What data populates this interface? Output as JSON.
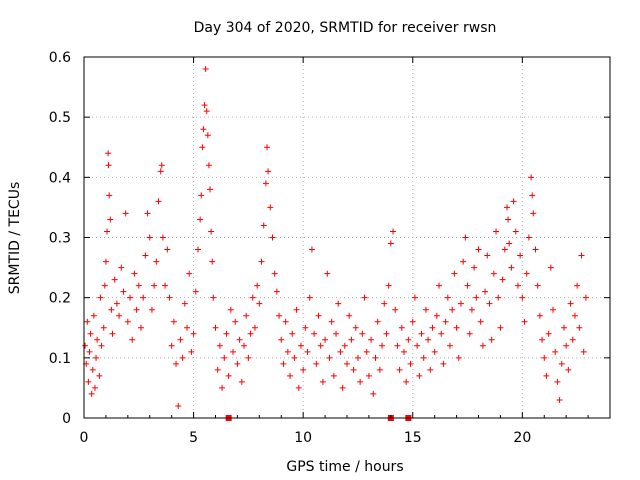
{
  "chart_data": {
    "type": "scatter",
    "title": "Day 304 of 2020, SRMTID for receiver rwsn",
    "xlabel": "GPS time / hours",
    "ylabel": "SRMTID / TECUs",
    "xlim": [
      0,
      24
    ],
    "ylim": [
      0,
      0.6
    ],
    "xticks": [
      0,
      5,
      10,
      15,
      20
    ],
    "xtick_labels": [
      "0",
      "5",
      "10",
      "15",
      "20"
    ],
    "yticks": [
      0,
      0.1,
      0.2,
      0.3,
      0.4,
      0.5,
      0.6
    ],
    "ytick_labels": [
      "0",
      "0.1",
      "0.2",
      "0.3",
      "0.4",
      "0.5",
      "0.6"
    ],
    "grid": true,
    "marker": "plus",
    "series_color": "#ff0000",
    "series": [
      {
        "name": "SRMTID",
        "points": [
          [
            0.05,
            0.12
          ],
          [
            0.1,
            0.09
          ],
          [
            0.15,
            0.16
          ],
          [
            0.2,
            0.06
          ],
          [
            0.25,
            0.11
          ],
          [
            0.3,
            0.14
          ],
          [
            0.35,
            0.04
          ],
          [
            0.4,
            0.08
          ],
          [
            0.45,
            0.17
          ],
          [
            0.5,
            0.05
          ],
          [
            0.55,
            0.1
          ],
          [
            0.6,
            0.13
          ],
          [
            0.7,
            0.07
          ],
          [
            0.75,
            0.2
          ],
          [
            0.8,
            0.12
          ],
          [
            0.9,
            0.15
          ],
          [
            0.95,
            0.22
          ],
          [
            1.0,
            0.26
          ],
          [
            1.05,
            0.31
          ],
          [
            1.1,
            0.44
          ],
          [
            1.12,
            0.42
          ],
          [
            1.15,
            0.37
          ],
          [
            1.2,
            0.33
          ],
          [
            1.25,
            0.18
          ],
          [
            1.3,
            0.14
          ],
          [
            1.4,
            0.23
          ],
          [
            1.5,
            0.19
          ],
          [
            1.6,
            0.17
          ],
          [
            1.7,
            0.25
          ],
          [
            1.8,
            0.21
          ],
          [
            1.9,
            0.34
          ],
          [
            2.0,
            0.16
          ],
          [
            2.1,
            0.2
          ],
          [
            2.2,
            0.13
          ],
          [
            2.3,
            0.24
          ],
          [
            2.4,
            0.18
          ],
          [
            2.5,
            0.22
          ],
          [
            2.6,
            0.15
          ],
          [
            2.7,
            0.2
          ],
          [
            2.8,
            0.27
          ],
          [
            2.9,
            0.34
          ],
          [
            3.0,
            0.3
          ],
          [
            3.1,
            0.18
          ],
          [
            3.2,
            0.22
          ],
          [
            3.3,
            0.26
          ],
          [
            3.4,
            0.36
          ],
          [
            3.5,
            0.41
          ],
          [
            3.55,
            0.42
          ],
          [
            3.6,
            0.3
          ],
          [
            3.7,
            0.22
          ],
          [
            3.8,
            0.28
          ],
          [
            3.9,
            0.2
          ],
          [
            4.0,
            0.12
          ],
          [
            4.1,
            0.16
          ],
          [
            4.2,
            0.09
          ],
          [
            4.3,
            0.02
          ],
          [
            4.4,
            0.13
          ],
          [
            4.5,
            0.1
          ],
          [
            4.6,
            0.19
          ],
          [
            4.7,
            0.15
          ],
          [
            4.8,
            0.24
          ],
          [
            4.9,
            0.11
          ],
          [
            5.0,
            0.14
          ],
          [
            5.1,
            0.21
          ],
          [
            5.2,
            0.28
          ],
          [
            5.3,
            0.33
          ],
          [
            5.35,
            0.37
          ],
          [
            5.4,
            0.45
          ],
          [
            5.45,
            0.48
          ],
          [
            5.5,
            0.52
          ],
          [
            5.55,
            0.58
          ],
          [
            5.6,
            0.51
          ],
          [
            5.65,
            0.47
          ],
          [
            5.7,
            0.42
          ],
          [
            5.75,
            0.38
          ],
          [
            5.8,
            0.31
          ],
          [
            5.85,
            0.26
          ],
          [
            5.9,
            0.2
          ],
          [
            6.0,
            0.15
          ],
          [
            6.1,
            0.08
          ],
          [
            6.2,
            0.12
          ],
          [
            6.3,
            0.05
          ],
          [
            6.4,
            0.1
          ],
          [
            6.5,
            0.14
          ],
          [
            6.6,
            0.07
          ],
          [
            6.7,
            0.18
          ],
          [
            6.8,
            0.11
          ],
          [
            6.9,
            0.16
          ],
          [
            7.0,
            0.09
          ],
          [
            7.1,
            0.13
          ],
          [
            7.2,
            0.06
          ],
          [
            7.3,
            0.12
          ],
          [
            7.4,
            0.17
          ],
          [
            7.5,
            0.1
          ],
          [
            7.6,
            0.14
          ],
          [
            7.7,
            0.2
          ],
          [
            7.8,
            0.15
          ],
          [
            7.9,
            0.22
          ],
          [
            8.0,
            0.19
          ],
          [
            8.1,
            0.26
          ],
          [
            8.2,
            0.32
          ],
          [
            8.3,
            0.39
          ],
          [
            8.35,
            0.45
          ],
          [
            8.4,
            0.41
          ],
          [
            8.5,
            0.35
          ],
          [
            8.6,
            0.3
          ],
          [
            8.7,
            0.24
          ],
          [
            8.8,
            0.21
          ],
          [
            8.9,
            0.17
          ],
          [
            9.0,
            0.13
          ],
          [
            9.1,
            0.09
          ],
          [
            9.2,
            0.16
          ],
          [
            9.3,
            0.11
          ],
          [
            9.4,
            0.07
          ],
          [
            9.5,
            0.14
          ],
          [
            9.6,
            0.1
          ],
          [
            9.7,
            0.18
          ],
          [
            9.8,
            0.05
          ],
          [
            9.9,
            0.12
          ],
          [
            10.0,
            0.08
          ],
          [
            10.1,
            0.15
          ],
          [
            10.2,
            0.11
          ],
          [
            10.3,
            0.2
          ],
          [
            10.4,
            0.28
          ],
          [
            10.5,
            0.14
          ],
          [
            10.6,
            0.09
          ],
          [
            10.7,
            0.17
          ],
          [
            10.8,
            0.12
          ],
          [
            10.9,
            0.06
          ],
          [
            11.0,
            0.13
          ],
          [
            11.1,
            0.24
          ],
          [
            11.2,
            0.1
          ],
          [
            11.3,
            0.16
          ],
          [
            11.4,
            0.07
          ],
          [
            11.5,
            0.14
          ],
          [
            11.6,
            0.19
          ],
          [
            11.7,
            0.11
          ],
          [
            11.8,
            0.05
          ],
          [
            11.9,
            0.12
          ],
          [
            12.0,
            0.09
          ],
          [
            12.1,
            0.17
          ],
          [
            12.2,
            0.13
          ],
          [
            12.3,
            0.08
          ],
          [
            12.4,
            0.15
          ],
          [
            12.5,
            0.1
          ],
          [
            12.6,
            0.06
          ],
          [
            12.7,
            0.14
          ],
          [
            12.8,
            0.2
          ],
          [
            12.9,
            0.11
          ],
          [
            13.0,
            0.07
          ],
          [
            13.1,
            0.13
          ],
          [
            13.2,
            0.04
          ],
          [
            13.3,
            0.1
          ],
          [
            13.4,
            0.16
          ],
          [
            13.5,
            0.08
          ],
          [
            13.6,
            0.12
          ],
          [
            13.7,
            0.19
          ],
          [
            13.8,
            0.14
          ],
          [
            13.9,
            0.22
          ],
          [
            14.0,
            0.29
          ],
          [
            14.1,
            0.31
          ],
          [
            14.2,
            0.18
          ],
          [
            14.3,
            0.12
          ],
          [
            14.4,
            0.08
          ],
          [
            14.5,
            0.15
          ],
          [
            14.6,
            0.11
          ],
          [
            14.7,
            0.06
          ],
          [
            14.8,
            0.13
          ],
          [
            14.9,
            0.09
          ],
          [
            15.0,
            0.16
          ],
          [
            15.1,
            0.2
          ],
          [
            15.2,
            0.12
          ],
          [
            15.3,
            0.07
          ],
          [
            15.4,
            0.14
          ],
          [
            15.5,
            0.1
          ],
          [
            15.6,
            0.18
          ],
          [
            15.7,
            0.13
          ],
          [
            15.8,
            0.08
          ],
          [
            15.9,
            0.15
          ],
          [
            16.0,
            0.11
          ],
          [
            16.1,
            0.17
          ],
          [
            16.2,
            0.22
          ],
          [
            16.3,
            0.14
          ],
          [
            16.4,
            0.09
          ],
          [
            16.5,
            0.16
          ],
          [
            16.6,
            0.2
          ],
          [
            16.7,
            0.12
          ],
          [
            16.8,
            0.18
          ],
          [
            16.9,
            0.24
          ],
          [
            17.0,
            0.15
          ],
          [
            17.1,
            0.1
          ],
          [
            17.2,
            0.19
          ],
          [
            17.3,
            0.26
          ],
          [
            17.4,
            0.3
          ],
          [
            17.5,
            0.22
          ],
          [
            17.6,
            0.14
          ],
          [
            17.7,
            0.18
          ],
          [
            17.8,
            0.25
          ],
          [
            17.9,
            0.2
          ],
          [
            18.0,
            0.28
          ],
          [
            18.1,
            0.16
          ],
          [
            18.2,
            0.12
          ],
          [
            18.3,
            0.21
          ],
          [
            18.4,
            0.27
          ],
          [
            18.5,
            0.19
          ],
          [
            18.6,
            0.13
          ],
          [
            18.7,
            0.24
          ],
          [
            18.8,
            0.31
          ],
          [
            18.9,
            0.2
          ],
          [
            19.0,
            0.15
          ],
          [
            19.1,
            0.23
          ],
          [
            19.2,
            0.28
          ],
          [
            19.3,
            0.35
          ],
          [
            19.35,
            0.33
          ],
          [
            19.4,
            0.29
          ],
          [
            19.5,
            0.25
          ],
          [
            19.6,
            0.36
          ],
          [
            19.7,
            0.31
          ],
          [
            19.8,
            0.22
          ],
          [
            19.9,
            0.27
          ],
          [
            20.0,
            0.2
          ],
          [
            20.1,
            0.16
          ],
          [
            20.2,
            0.24
          ],
          [
            20.3,
            0.3
          ],
          [
            20.4,
            0.4
          ],
          [
            20.45,
            0.37
          ],
          [
            20.5,
            0.34
          ],
          [
            20.6,
            0.28
          ],
          [
            20.7,
            0.22
          ],
          [
            20.8,
            0.17
          ],
          [
            20.9,
            0.13
          ],
          [
            21.0,
            0.1
          ],
          [
            21.1,
            0.07
          ],
          [
            21.2,
            0.14
          ],
          [
            21.3,
            0.25
          ],
          [
            21.4,
            0.18
          ],
          [
            21.5,
            0.11
          ],
          [
            21.6,
            0.06
          ],
          [
            21.7,
            0.03
          ],
          [
            21.8,
            0.09
          ],
          [
            21.9,
            0.15
          ],
          [
            22.0,
            0.12
          ],
          [
            22.1,
            0.08
          ],
          [
            22.2,
            0.19
          ],
          [
            22.3,
            0.13
          ],
          [
            22.4,
            0.17
          ],
          [
            22.5,
            0.22
          ],
          [
            22.6,
            0.15
          ],
          [
            22.7,
            0.27
          ],
          [
            22.8,
            0.11
          ],
          [
            22.9,
            0.2
          ]
        ]
      }
    ],
    "zero_markers_x": [
      6.6,
      14.0,
      14.8
    ]
  }
}
